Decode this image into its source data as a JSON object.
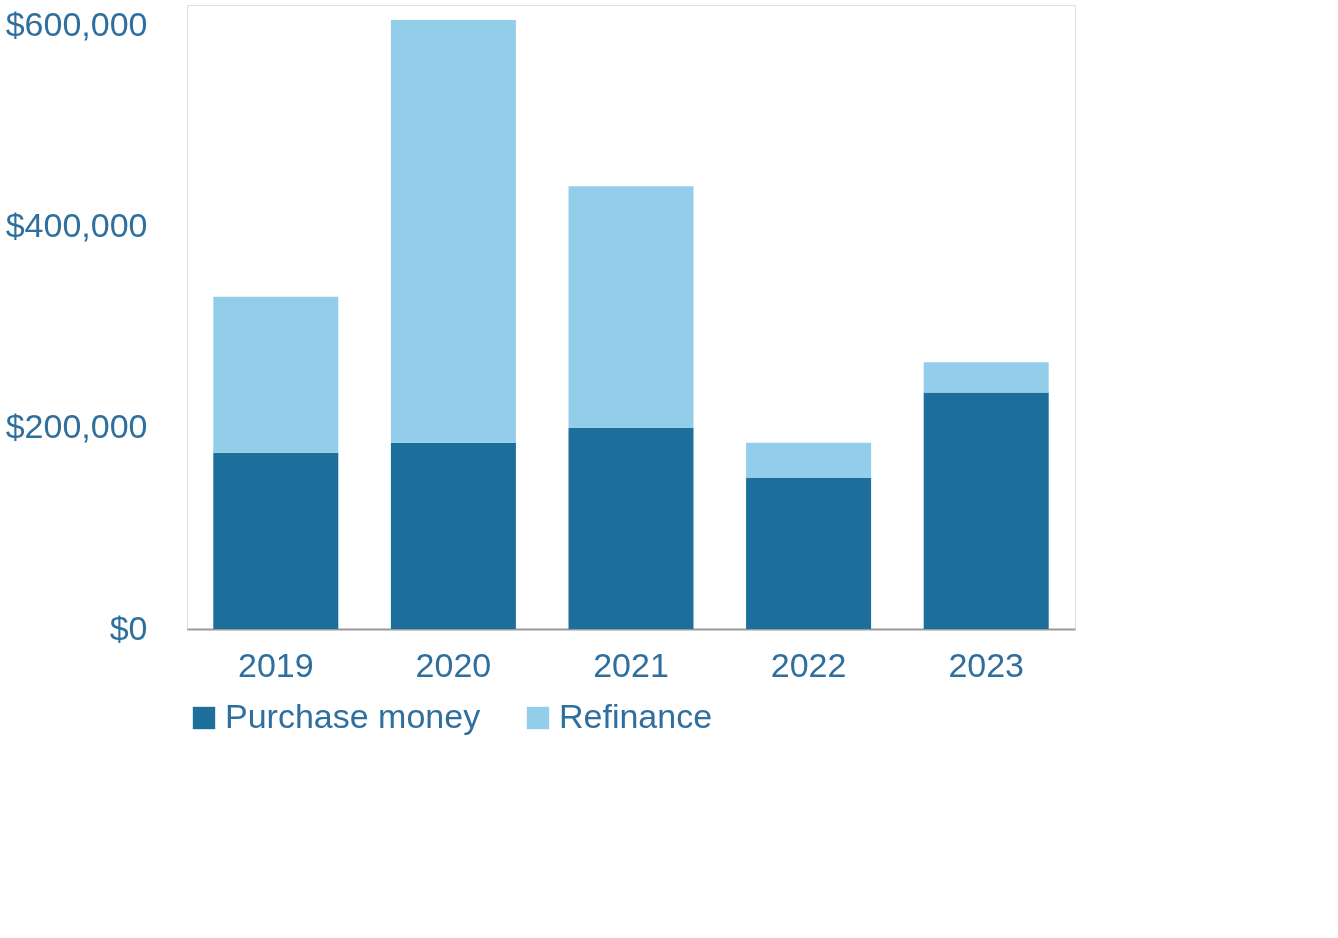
{
  "chart_data": {
    "type": "bar",
    "stacked": true,
    "categories": [
      "2019",
      "2020",
      "2021",
      "2022",
      "2023"
    ],
    "series": [
      {
        "name": "Purchase money",
        "color": "#1c6f9a",
        "values": [
          175000,
          185000,
          200000,
          150000,
          235000
        ]
      },
      {
        "name": "Refinance",
        "color": "#92cdea",
        "values": [
          155000,
          420000,
          240000,
          35000,
          30000
        ]
      }
    ],
    "ylim": [
      0,
      620000
    ],
    "yticks": [
      {
        "value": 0,
        "label": "$0"
      },
      {
        "value": 200000,
        "label": "$200,000"
      },
      {
        "value": 400000,
        "label": "$400,000"
      },
      {
        "value": 600000,
        "label": "$600,000"
      }
    ],
    "grid": false,
    "legend": "bottom"
  }
}
